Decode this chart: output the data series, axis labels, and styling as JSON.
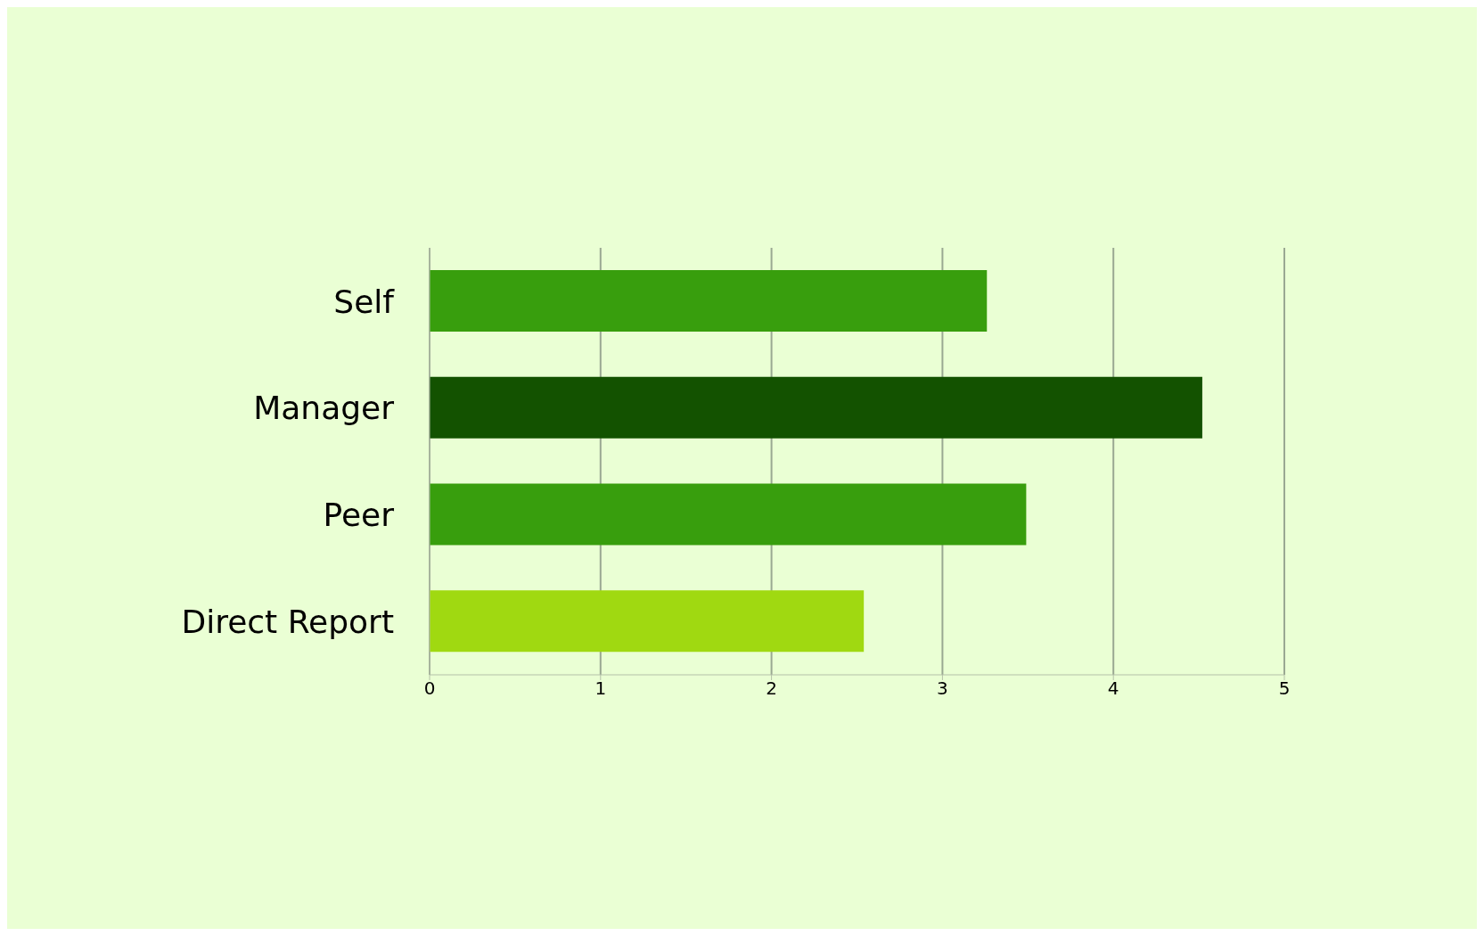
{
  "chart_data": {
    "type": "bar",
    "orientation": "horizontal",
    "categories": [
      "Self",
      "Manager",
      "Peer",
      "Direct Report"
    ],
    "values": [
      3.26,
      4.52,
      3.49,
      2.54
    ],
    "colors": [
      "#389e0d",
      "#135200",
      "#389e0d",
      "#a0d911"
    ],
    "xlim": [
      0,
      5
    ],
    "xticks": [
      0,
      1,
      2,
      3,
      4,
      5
    ],
    "grid": "x"
  }
}
